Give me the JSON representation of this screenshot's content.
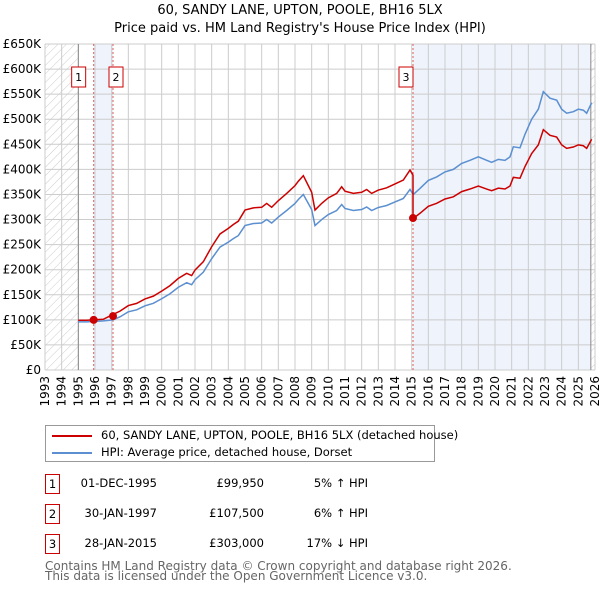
{
  "title_line1": "60, SANDY LANE, UPTON, POOLE, BH16 5LX",
  "title_line2": "Price paid vs. HM Land Registry's House Price Index (HPI)",
  "chart_data": {
    "type": "line",
    "title": "60, SANDY LANE, UPTON, POOLE, BH16 5LX - Price paid vs. HM Land Registry's House Price Index (HPI)",
    "xlim": [
      1993,
      2026
    ],
    "ylim": [
      0,
      650000
    ],
    "x_ticks": [
      "1993",
      "1994",
      "1995",
      "1996",
      "1997",
      "1998",
      "1999",
      "2000",
      "2001",
      "2002",
      "2003",
      "2004",
      "2005",
      "2006",
      "2007",
      "2008",
      "2009",
      "2010",
      "2011",
      "2012",
      "2013",
      "2014",
      "2015",
      "2016",
      "2017",
      "2018",
      "2019",
      "2020",
      "2021",
      "2022",
      "2023",
      "2024",
      "2025",
      "2026"
    ],
    "y_ticks": [
      {
        "v": 0,
        "label": "£0"
      },
      {
        "v": 50000,
        "label": "£50K"
      },
      {
        "v": 100000,
        "label": "£100K"
      },
      {
        "v": 150000,
        "label": "£150K"
      },
      {
        "v": 200000,
        "label": "£200K"
      },
      {
        "v": 250000,
        "label": "£250K"
      },
      {
        "v": 300000,
        "label": "£300K"
      },
      {
        "v": 350000,
        "label": "£350K"
      },
      {
        "v": 400000,
        "label": "£400K"
      },
      {
        "v": 450000,
        "label": "£450K"
      },
      {
        "v": 500000,
        "label": "£500K"
      },
      {
        "v": 550000,
        "label": "£550K"
      },
      {
        "v": 600000,
        "label": "£600K"
      },
      {
        "v": 650000,
        "label": "£650K"
      }
    ],
    "grid": true,
    "colors": {
      "property": "#cc0000",
      "hpi": "#5b8fd0",
      "shade": "#eef3fc"
    },
    "hpi_series": {
      "name": "HPI: Average price, detached house, Dorset",
      "x": [
        1995.0,
        1995.5,
        1996.0,
        1996.5,
        1997.08,
        1997.5,
        1998.0,
        1998.5,
        1999.0,
        1999.5,
        2000.0,
        2000.5,
        2001.0,
        2001.5,
        2001.8,
        2002.0,
        2002.5,
        2003.0,
        2003.5,
        2004.0,
        2004.3,
        2004.6,
        2005.0,
        2005.5,
        2006.0,
        2006.3,
        2006.6,
        2007.0,
        2007.5,
        2008.0,
        2008.2,
        2008.5,
        2009.0,
        2009.2,
        2009.6,
        2010.0,
        2010.5,
        2010.8,
        2011.0,
        2011.5,
        2012.0,
        2012.3,
        2012.6,
        2013.0,
        2013.5,
        2014.0,
        2014.5,
        2014.9,
        2015.1,
        2015.5,
        2016.0,
        2016.5,
        2017.0,
        2017.5,
        2018.0,
        2018.5,
        2019.0,
        2019.5,
        2019.8,
        2020.2,
        2020.6,
        2020.9,
        2021.1,
        2021.5,
        2021.8,
        2022.2,
        2022.6,
        2022.9,
        2023.3,
        2023.7,
        2024.0,
        2024.3,
        2024.7,
        2025.0,
        2025.3,
        2025.5,
        2025.8
      ],
      "y": [
        96000,
        96000,
        97000,
        98000,
        100000,
        106000,
        116000,
        120000,
        128000,
        133000,
        142000,
        152000,
        165000,
        174000,
        170000,
        180000,
        195000,
        222000,
        245000,
        255000,
        262000,
        268000,
        288000,
        292000,
        293000,
        300000,
        293000,
        305000,
        318000,
        332000,
        340000,
        350000,
        320000,
        288000,
        300000,
        310000,
        318000,
        330000,
        322000,
        318000,
        320000,
        325000,
        318000,
        324000,
        328000,
        335000,
        342000,
        360000,
        350000,
        362000,
        378000,
        385000,
        395000,
        400000,
        412000,
        418000,
        425000,
        418000,
        414000,
        420000,
        418000,
        425000,
        445000,
        443000,
        470000,
        500000,
        520000,
        555000,
        542000,
        538000,
        520000,
        512000,
        515000,
        520000,
        518000,
        512000,
        533000
      ]
    },
    "property_series": {
      "name": "60, SANDY LANE, UPTON, POOLE, BH16 5LX (detached house)"
    },
    "sales": [
      {
        "id": "1",
        "date": "01-DEC-1995",
        "x": 1995.92,
        "price": 99950,
        "price_label": "£99,950",
        "hpi_label": "5% ↑ HPI"
      },
      {
        "id": "2",
        "date": "30-JAN-1997",
        "x": 1997.08,
        "price": 107500,
        "price_label": "£107,500",
        "hpi_label": "6% ↑ HPI"
      },
      {
        "id": "3",
        "date": "28-JAN-2015",
        "x": 2015.08,
        "price": 303000,
        "price_label": "£303,000",
        "hpi_label": "17% ↓ HPI"
      }
    ]
  },
  "legend": {
    "property": "60, SANDY LANE, UPTON, POOLE, BH16 5LX (detached house)",
    "hpi": "HPI: Average price, detached house, Dorset"
  },
  "footer": {
    "line1": "Contains HM Land Registry data © Crown copyright and database right 2026.",
    "line2": "This data is licensed under the Open Government Licence v3.0."
  }
}
